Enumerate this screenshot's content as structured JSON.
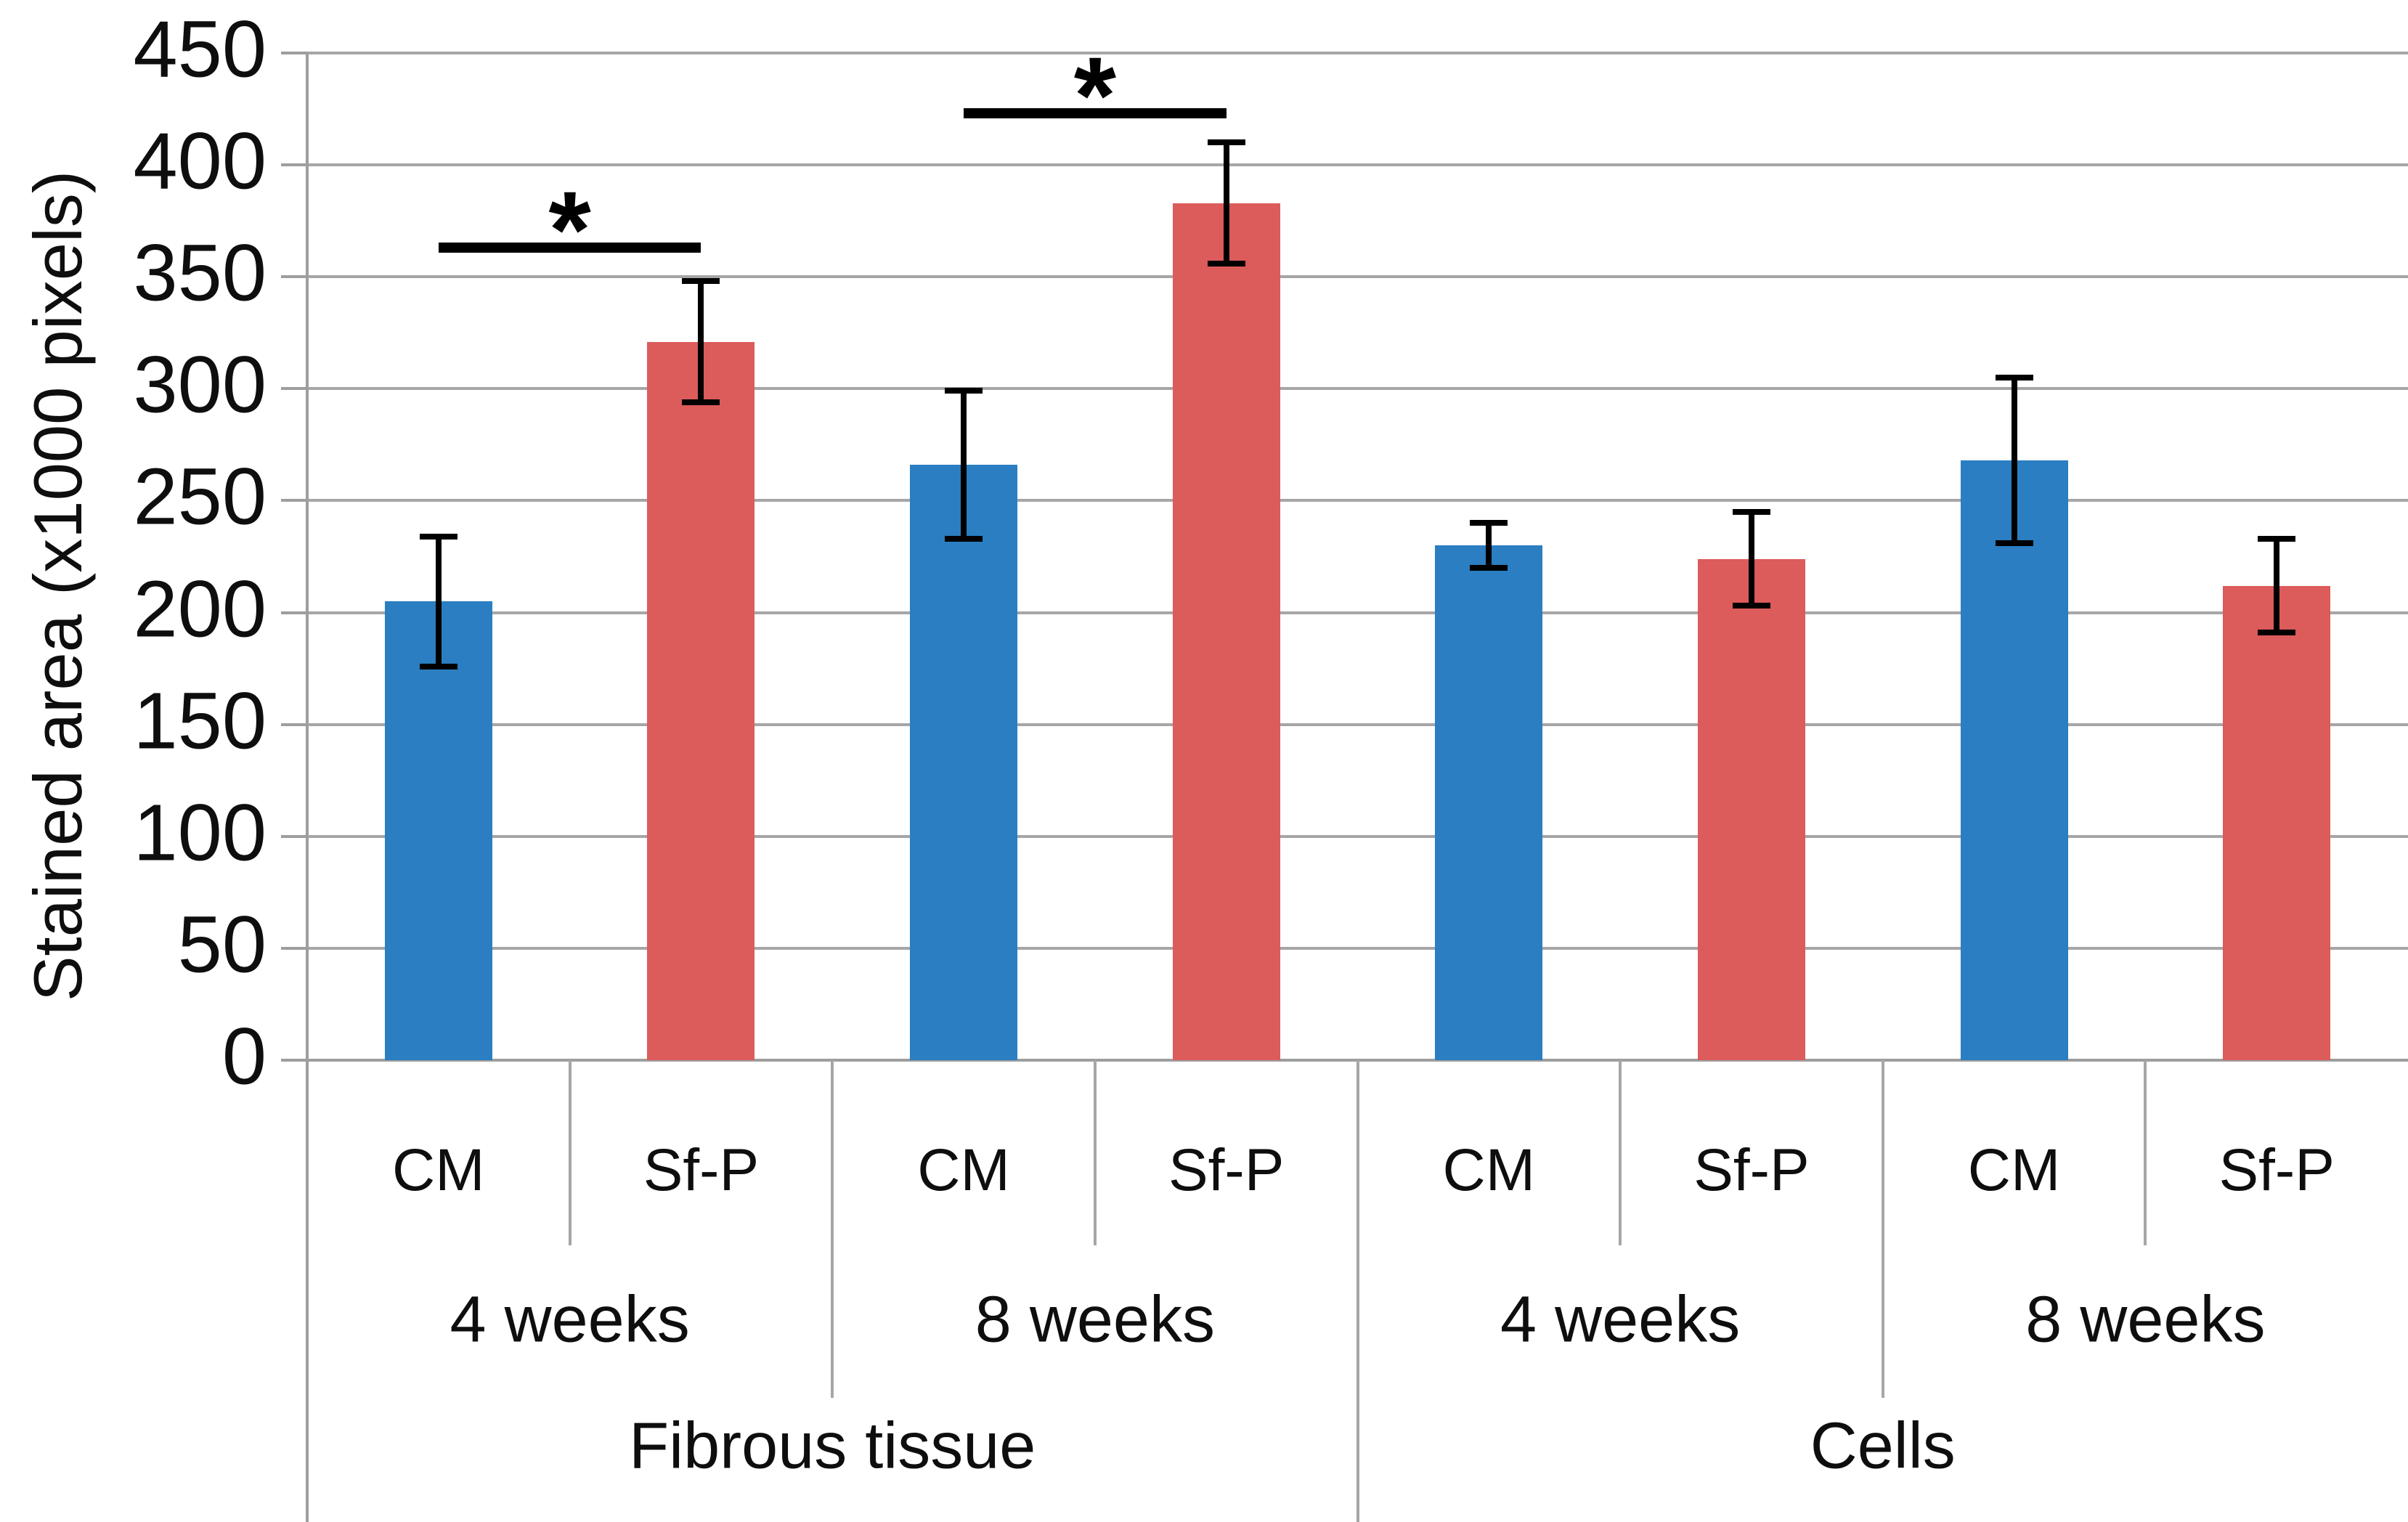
{
  "chart_data": {
    "type": "bar",
    "title": "",
    "ylabel": "Stained area (x1000 pixels)",
    "xlabel": "",
    "ylim": [
      0,
      450
    ],
    "ytick_interval": 50,
    "ytick_labels": [
      "0",
      "50",
      "100",
      "150",
      "200",
      "250",
      "300",
      "350",
      "400",
      "450"
    ],
    "grid": true,
    "legend_position": "none",
    "series": [
      {
        "name": "CM",
        "color": "#2A7EC1"
      },
      {
        "name": "Sf-P",
        "color": "#DC5B5B"
      }
    ],
    "bars": [
      {
        "tissue": "Fibrous tissue",
        "week": "4 weeks",
        "condition": "CM",
        "value": 205,
        "error": 29
      },
      {
        "tissue": "Fibrous tissue",
        "week": "4 weeks",
        "condition": "Sf-P",
        "value": 321,
        "error": 27
      },
      {
        "tissue": "Fibrous tissue",
        "week": "8 weeks",
        "condition": "CM",
        "value": 266,
        "error": 33
      },
      {
        "tissue": "Fibrous tissue",
        "week": "8 weeks",
        "condition": "Sf-P",
        "value": 383,
        "error": 27
      },
      {
        "tissue": "Cells",
        "week": "4 weeks",
        "condition": "CM",
        "value": 230,
        "error": 10
      },
      {
        "tissue": "Cells",
        "week": "4 weeks",
        "condition": "Sf-P",
        "value": 224,
        "error": 21
      },
      {
        "tissue": "Cells",
        "week": "8 weeks",
        "condition": "CM",
        "value": 268,
        "error": 37
      },
      {
        "tissue": "Cells",
        "week": "8 weeks",
        "condition": "Sf-P",
        "value": 212,
        "error": 21
      }
    ],
    "week_groups": [
      {
        "label": "4 weeks",
        "bar_span": [
          0,
          1
        ]
      },
      {
        "label": "8 weeks",
        "bar_span": [
          2,
          3
        ]
      },
      {
        "label": "4 weeks",
        "bar_span": [
          4,
          5
        ]
      },
      {
        "label": "8 weeks",
        "bar_span": [
          6,
          7
        ]
      }
    ],
    "tissue_groups": [
      {
        "label": "Fibrous tissue",
        "bar_span": [
          0,
          3
        ]
      },
      {
        "label": "Cells",
        "bar_span": [
          4,
          7
        ]
      }
    ],
    "significance": [
      {
        "between": [
          0,
          1
        ],
        "symbol": "*",
        "line_value": 363
      },
      {
        "between": [
          2,
          3
        ],
        "symbol": "*",
        "line_value": 423
      }
    ],
    "colors": {
      "gridline": "#A6A6A6",
      "axis": "#9E9E9E",
      "annotation": "#000000",
      "text": "#0E0E0E"
    }
  }
}
